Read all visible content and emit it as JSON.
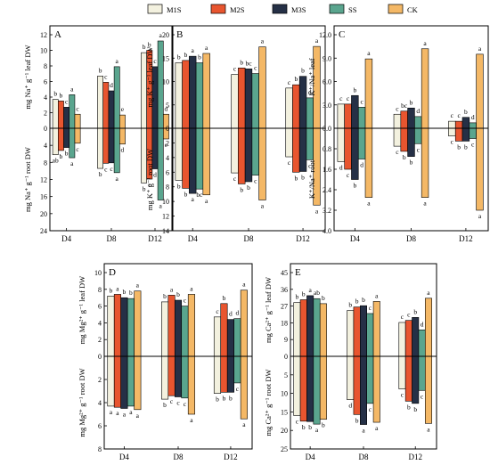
{
  "legend": [
    {
      "name": "M1S",
      "color": "#f3f1df"
    },
    {
      "name": "M2S",
      "color": "#e8552f"
    },
    {
      "name": "M3S",
      "color": "#253046"
    },
    {
      "name": "SS",
      "color": "#5aa58e"
    },
    {
      "name": "CK",
      "color": "#f4b866"
    }
  ],
  "chart_data": [
    {
      "type": "bar",
      "title": "A",
      "categories": [
        "D4",
        "D8",
        "D12"
      ],
      "ylabel_top": "mg Na⁺ g⁻¹ leaf DW",
      "ylabel_bottom": "mg Na⁺ g⁻¹ root DW",
      "ylim_top": [
        0,
        12
      ],
      "ylim_bottom": [
        0,
        24
      ],
      "yticks_top": [
        "0",
        "2",
        "4",
        "6",
        "8",
        "10",
        "12"
      ],
      "yticks_bottom": [
        "",
        "4",
        "8",
        "12",
        "16",
        "20",
        "24"
      ],
      "top": {
        "values": [
          [
            3.7,
            3.5,
            2.7,
            4.3,
            1.8
          ],
          [
            6.7,
            5.9,
            4.8,
            7.9,
            1.7
          ],
          [
            9.7,
            10.0,
            7.9,
            11.2,
            1.8
          ]
        ],
        "letters": [
          [
            "b",
            "b",
            "c",
            "a",
            "c"
          ],
          [
            "b",
            "c",
            "d",
            "a",
            "e"
          ],
          [
            "b",
            "b",
            "c",
            "a",
            "d"
          ]
        ]
      },
      "bottom": {
        "values": [
          [
            6.2,
            5.2,
            4.5,
            6.9,
            3.5
          ],
          [
            9.4,
            8.2,
            8.1,
            10.4,
            3.7
          ],
          [
            12.8,
            11.9,
            9.5,
            16.8,
            2.5
          ]
        ],
        "letters": [
          [
            "ab",
            "b",
            "b",
            "a",
            "c"
          ],
          [
            "b",
            "c",
            "c",
            "a",
            "d"
          ],
          [
            "b",
            "c",
            "d",
            "a",
            "e"
          ]
        ]
      }
    },
    {
      "type": "bar",
      "title": "B",
      "categories": [
        "D4",
        "D8",
        "D12"
      ],
      "ylabel_top": "mg K⁺ g⁻¹ leaf DW",
      "ylabel_bottom": "mg K⁺ g⁻¹ root DW",
      "ylim_top": [
        0,
        20
      ],
      "ylim_bottom": [
        0,
        14
      ],
      "yticks_top": [
        "0",
        "5",
        "10",
        "15",
        "20"
      ],
      "yticks_bottom": [
        "",
        "2",
        "4",
        "6",
        "8",
        "10",
        "12",
        "14"
      ],
      "top": {
        "values": [
          [
            14.0,
            14.5,
            15.4,
            14.0,
            16.0
          ],
          [
            11.5,
            12.9,
            12.7,
            11.7,
            17.4
          ],
          [
            8.6,
            9.3,
            11.1,
            6.5,
            17.5
          ]
        ],
        "letters": [
          [
            "b",
            "b",
            "a",
            "b",
            "a"
          ],
          [
            "c",
            "b",
            "bc",
            "c",
            "a"
          ],
          [
            "c",
            "b",
            "b",
            "d",
            "a"
          ]
        ]
      },
      "bottom": {
        "values": [
          [
            7.1,
            8.2,
            8.9,
            8.3,
            9.1
          ],
          [
            6.1,
            7.6,
            7.3,
            6.4,
            9.8
          ],
          [
            3.9,
            6.0,
            5.9,
            4.3,
            10.5
          ]
        ],
        "letters": [
          [
            "b",
            "b",
            "a",
            "bc",
            "a"
          ],
          [
            "c",
            "b",
            "b",
            "c",
            "a"
          ],
          [
            "c",
            "b",
            "b",
            "c",
            "a"
          ]
        ]
      }
    },
    {
      "type": "bar",
      "title": "C",
      "categories": [
        "D4",
        "D8",
        "D12"
      ],
      "ylabel_top": "K⁺/Na⁺ leaf",
      "ylabel_bottom": "K⁺/Na⁺ root",
      "ylim_top": [
        0,
        12
      ],
      "ylim_bottom": [
        0,
        4.0
      ],
      "yticks_top": [
        "0.0",
        "3.0",
        "6.0",
        "9.0",
        "12.0"
      ],
      "yticks_bottom": [
        "",
        "0.8",
        "1.6",
        "2.4",
        "3.2",
        "4.0"
      ],
      "top": {
        "values": [
          [
            3.1,
            3.1,
            4.2,
            2.7,
            8.9
          ],
          [
            1.8,
            2.2,
            2.6,
            1.5,
            10.2
          ],
          [
            0.9,
            0.9,
            1.4,
            0.7,
            9.5
          ]
        ],
        "letters": [
          [
            "c",
            "c",
            "b",
            "c",
            "a"
          ],
          [
            "c",
            "bc",
            "b",
            "d",
            "a"
          ],
          [
            "c",
            "c",
            "b",
            "d",
            "a"
          ]
        ]
      },
      "bottom": {
        "values": [
          [
            1.3,
            1.6,
            2.0,
            1.2,
            2.7
          ],
          [
            0.7,
            0.9,
            1.1,
            0.6,
            2.7
          ],
          [
            0.3,
            0.5,
            0.5,
            0.4,
            3.2
          ]
        ],
        "letters": [
          [
            "d",
            "c",
            "b",
            "d",
            "a"
          ],
          [
            "c",
            "b",
            "b",
            "c",
            "a"
          ],
          [
            "c",
            "b",
            "b",
            "c",
            "a"
          ]
        ]
      }
    },
    {
      "type": "bar",
      "title": "D",
      "categories": [
        "D4",
        "D8",
        "D12"
      ],
      "ylabel_top": "mg Mg²⁺ g⁻¹ leaf DW",
      "ylabel_bottom": "mg Mg²⁺ g⁻¹ root DW",
      "ylim_top": [
        0,
        10
      ],
      "ylim_bottom": [
        0,
        8
      ],
      "yticks_top": [
        "0",
        "2",
        "4",
        "6",
        "8",
        "10"
      ],
      "yticks_bottom": [
        "",
        "2",
        "4",
        "6",
        "8"
      ],
      "top": {
        "values": [
          [
            7.2,
            7.4,
            7.0,
            6.9,
            7.8
          ],
          [
            6.5,
            7.3,
            6.7,
            6.0,
            7.4
          ],
          [
            4.7,
            6.3,
            4.4,
            4.5,
            7.9
          ]
        ],
        "letters": [
          [
            "b",
            "a",
            "b",
            "b",
            "a"
          ],
          [
            "b",
            "a",
            "b",
            "c",
            "a"
          ],
          [
            "c",
            "b",
            "d",
            "d",
            "a"
          ]
        ]
      },
      "bottom": {
        "values": [
          [
            4.3,
            4.4,
            4.5,
            4.3,
            4.6
          ],
          [
            3.7,
            3.4,
            3.5,
            3.6,
            5.0
          ],
          [
            3.2,
            3.1,
            3.1,
            2.3,
            5.4
          ]
        ],
        "letters": [
          [
            "a",
            "a",
            "a",
            "a",
            "a"
          ],
          [
            "b",
            "c",
            "c",
            "c",
            "a"
          ],
          [
            "b",
            "b",
            "b",
            "c",
            "a"
          ]
        ]
      }
    },
    {
      "type": "bar",
      "title": "E",
      "categories": [
        "D4",
        "D8",
        "D12"
      ],
      "ylabel_top": "mg Ca²⁺ g⁻¹ leaf DW",
      "ylabel_bottom": "mg Ca²⁺ g⁻¹ root DW",
      "ylim_top": [
        0,
        45
      ],
      "ylim_bottom": [
        0,
        25
      ],
      "yticks_top": [
        "0",
        "9",
        "18",
        "27",
        "36",
        "45"
      ],
      "yticks_bottom": [
        "",
        "5",
        "10",
        "15",
        "20",
        "25"
      ],
      "top": {
        "values": [
          [
            28.9,
            30.4,
            32.6,
            31.0,
            28.3
          ],
          [
            24.6,
            26.5,
            27.2,
            23.0,
            29.5
          ],
          [
            18.2,
            19.3,
            20.9,
            14.2,
            31.2
          ]
        ],
        "letters": [
          [
            "b",
            "b",
            "a",
            "ab",
            "b"
          ],
          [
            "b",
            "b",
            "b",
            "c",
            "a"
          ],
          [
            "c",
            "c",
            "b",
            "d",
            "a"
          ]
        ]
      },
      "bottom": {
        "values": [
          [
            16.0,
            17.5,
            17.6,
            18.3,
            17.0
          ],
          [
            11.7,
            15.7,
            18.4,
            12.7,
            17.8
          ],
          [
            8.8,
            12.1,
            12.7,
            9.2,
            18.1
          ]
        ],
        "letters": [
          [
            "c",
            "b",
            "b",
            "a",
            "b"
          ],
          [
            "d",
            "b",
            "a",
            "c",
            "a"
          ],
          [
            "c",
            "b",
            "b",
            "c",
            "a"
          ]
        ]
      }
    }
  ]
}
